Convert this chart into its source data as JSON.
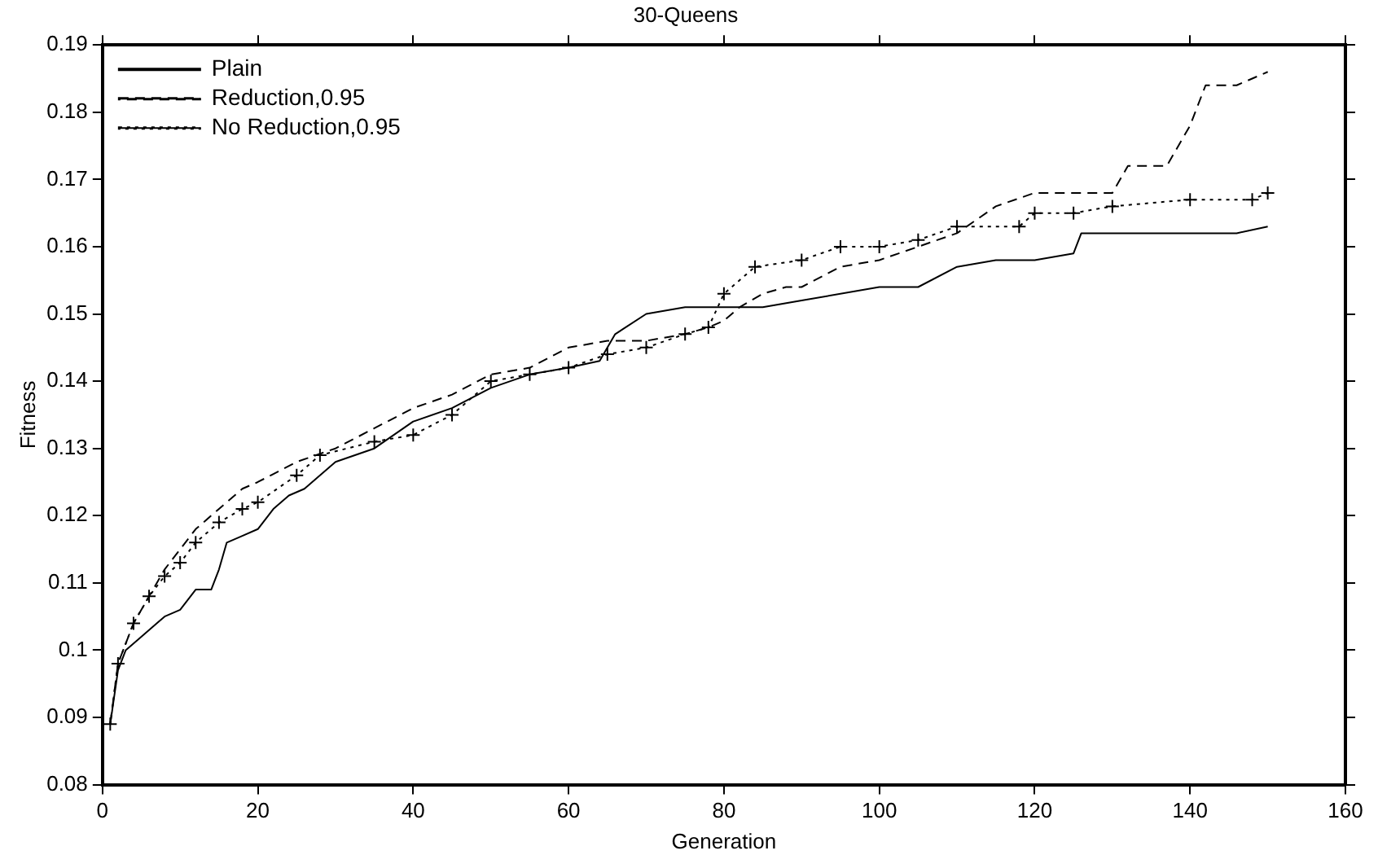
{
  "chart_data": {
    "type": "line",
    "title": "30-Queens",
    "xlabel": "Generation",
    "ylabel": "Fitness",
    "xlim": [
      0,
      160
    ],
    "xticks": [
      0,
      20,
      40,
      60,
      80,
      100,
      120,
      140,
      160
    ],
    "ylim": [
      0.08,
      0.19
    ],
    "yticks": [
      0.08,
      0.09,
      0.1,
      0.11,
      0.12,
      0.13,
      0.14,
      0.15,
      0.16,
      0.17,
      0.18,
      0.19
    ],
    "grid": false,
    "legend": "top left",
    "series": [
      {
        "name": "Plain",
        "color": "#000000",
        "line_style": "solid",
        "marker": "none",
        "x": [
          1,
          2,
          3,
          5,
          8,
          10,
          12,
          14,
          15,
          16,
          18,
          20,
          22,
          24,
          26,
          28,
          30,
          35,
          40,
          45,
          50,
          55,
          60,
          64,
          65,
          66,
          70,
          75,
          85,
          90,
          100,
          105,
          110,
          115,
          120,
          125,
          126,
          146,
          150
        ],
        "values": [
          0.089,
          0.097,
          0.1,
          0.102,
          0.105,
          0.106,
          0.109,
          0.109,
          0.112,
          0.116,
          0.117,
          0.118,
          0.121,
          0.123,
          0.124,
          0.126,
          0.128,
          0.13,
          0.134,
          0.136,
          0.139,
          0.141,
          0.142,
          0.143,
          0.145,
          0.147,
          0.15,
          0.151,
          0.151,
          0.152,
          0.154,
          0.154,
          0.157,
          0.158,
          0.158,
          0.159,
          0.162,
          0.162,
          0.163
        ]
      },
      {
        "name": "Reduction,0.95",
        "color": "#000000",
        "line_style": "dashed",
        "marker": "none",
        "x": [
          1,
          2,
          4,
          6,
          8,
          10,
          12,
          15,
          18,
          20,
          25,
          30,
          35,
          40,
          45,
          50,
          55,
          60,
          65,
          70,
          75,
          78,
          80,
          82,
          85,
          88,
          90,
          95,
          100,
          105,
          110,
          115,
          120,
          125,
          130,
          132,
          137,
          140,
          142,
          146,
          150
        ],
        "values": [
          0.089,
          0.098,
          0.104,
          0.108,
          0.112,
          0.115,
          0.118,
          0.121,
          0.124,
          0.125,
          0.128,
          0.13,
          0.133,
          0.136,
          0.138,
          0.141,
          0.142,
          0.145,
          0.146,
          0.146,
          0.147,
          0.148,
          0.149,
          0.151,
          0.153,
          0.154,
          0.154,
          0.157,
          0.158,
          0.16,
          0.162,
          0.166,
          0.168,
          0.168,
          0.168,
          0.172,
          0.172,
          0.178,
          0.184,
          0.184,
          0.186
        ]
      },
      {
        "name": "No Reduction,0.95",
        "color": "#000000",
        "line_style": "dotted",
        "marker": "cross",
        "x": [
          1,
          2,
          4,
          6,
          8,
          10,
          12,
          15,
          18,
          20,
          25,
          28,
          35,
          40,
          45,
          50,
          55,
          60,
          65,
          70,
          75,
          78,
          80,
          84,
          90,
          95,
          100,
          105,
          110,
          118,
          120,
          125,
          130,
          140,
          148,
          150
        ],
        "values": [
          0.089,
          0.098,
          0.104,
          0.108,
          0.111,
          0.113,
          0.116,
          0.119,
          0.121,
          0.122,
          0.126,
          0.129,
          0.131,
          0.132,
          0.135,
          0.14,
          0.141,
          0.142,
          0.144,
          0.145,
          0.147,
          0.148,
          0.153,
          0.157,
          0.158,
          0.16,
          0.16,
          0.161,
          0.163,
          0.163,
          0.165,
          0.165,
          0.166,
          0.167,
          0.167,
          0.168
        ]
      }
    ]
  }
}
